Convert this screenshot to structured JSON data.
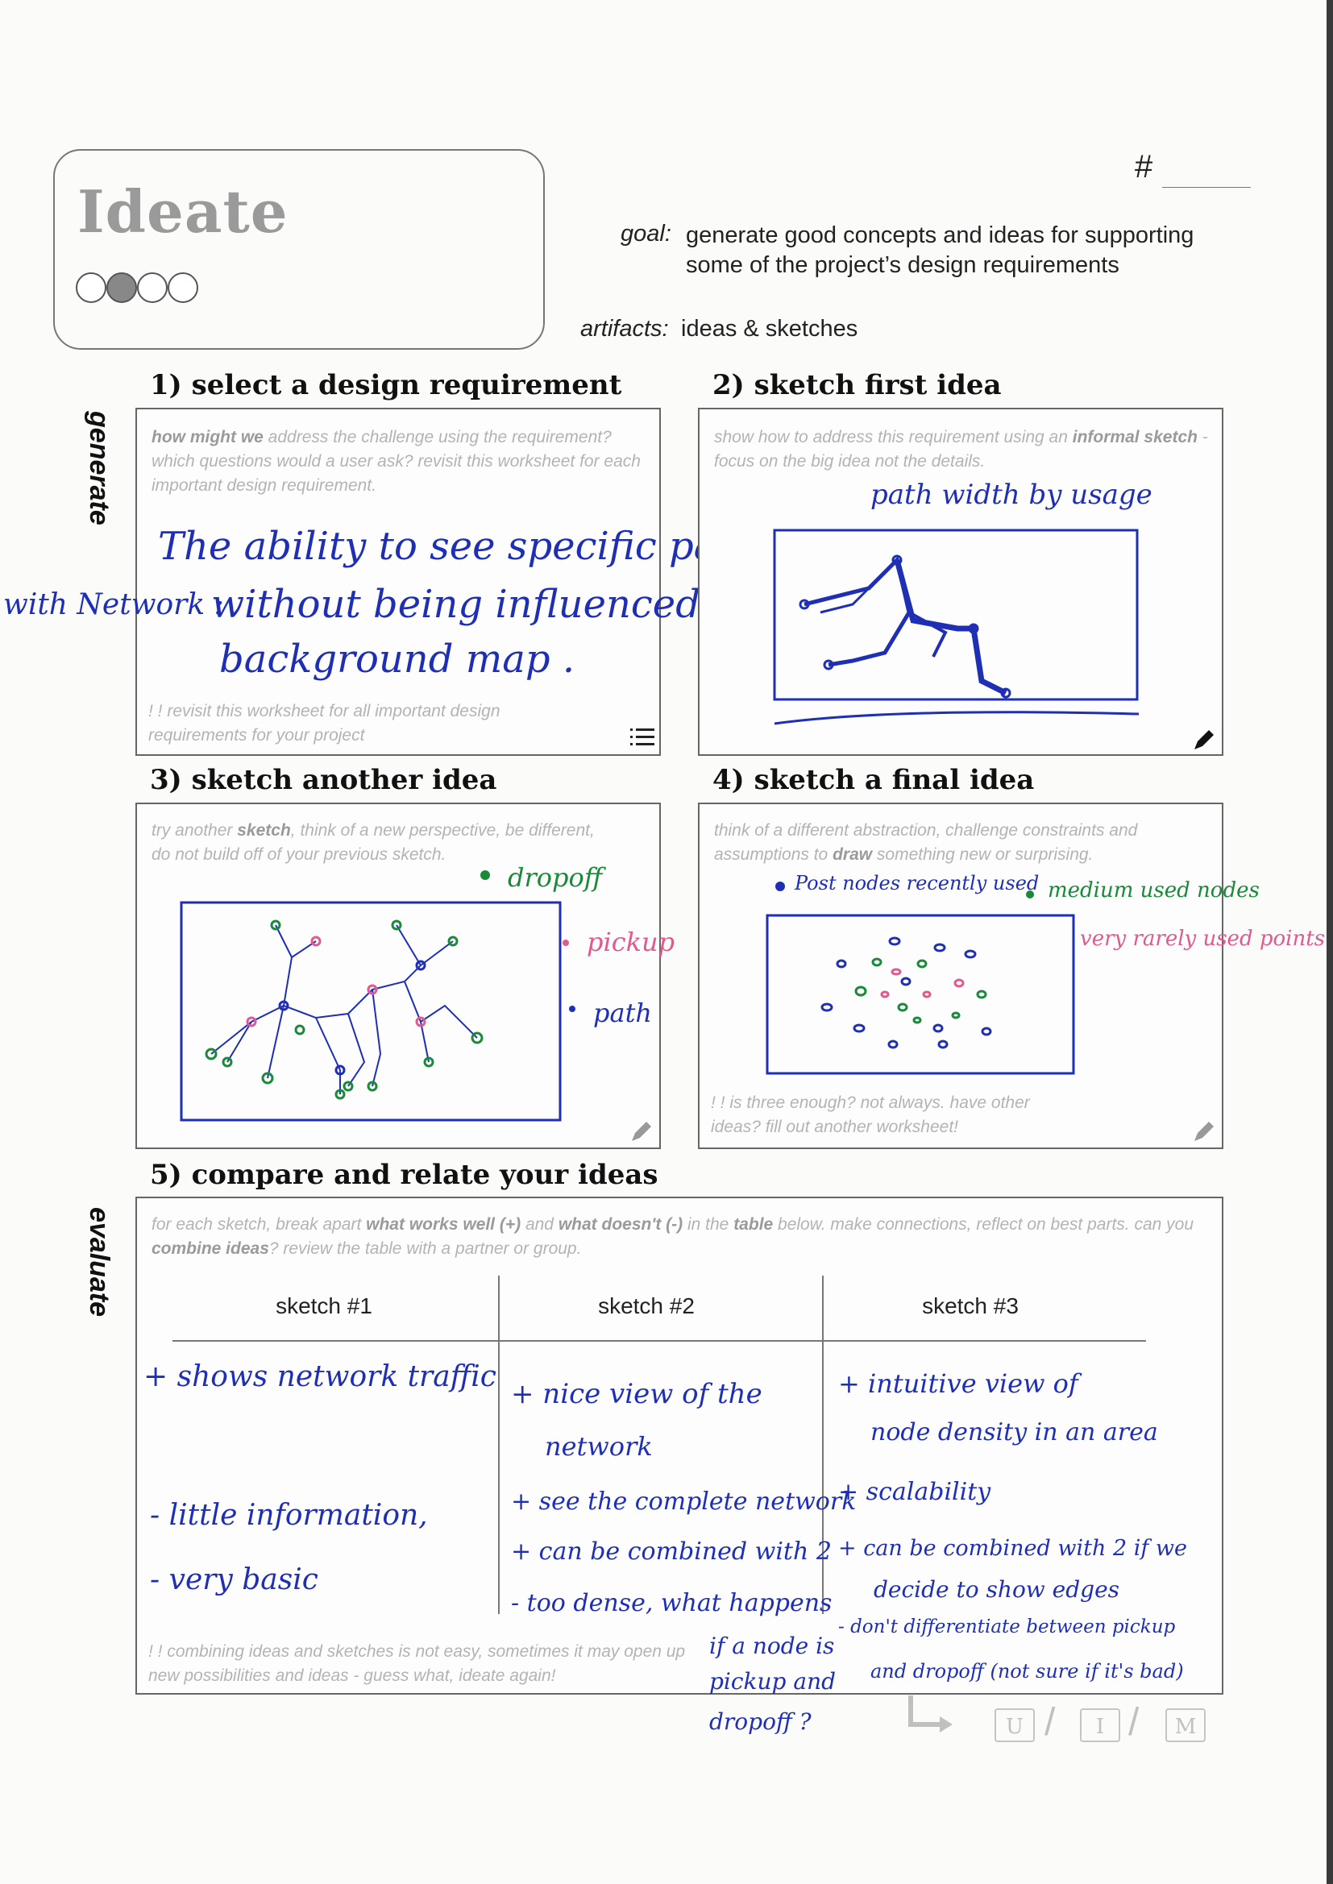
{
  "header": {
    "title": "Ideate",
    "progress_dots": {
      "total": 4,
      "active_index": 1
    },
    "number_label": "#",
    "goal_label": "goal:",
    "goal_text_line1": "generate good concepts and ideas for supporting",
    "goal_text_line2": "some of the project’s design requirements",
    "artifacts_label": "artifacts:",
    "artifacts_text": "ideas & sketches"
  },
  "side_labels": {
    "generate": "generate",
    "evaluate": "evaluate"
  },
  "sections": {
    "s1": {
      "heading": "1) select a design requirement",
      "instr_bold": "how might we",
      "instr_rest": " address the challenge using the requirement?  which questions would a user ask? revisit this worksheet for each important design requirement.",
      "note": "! !  revisit this worksheet for all important design requirements for your project",
      "handwriting": {
        "line1": "The ability to see specific pattern",
        "line2": "without being influenced by a",
        "line3": "background map .",
        "margin": "with Network :"
      }
    },
    "s2": {
      "heading": "2) sketch first idea",
      "instr_a": "show how to address this requirement using an ",
      "instr_b1": "informal sketch",
      "instr_c": " - focus on the big idea not the details.",
      "handwriting": {
        "caption": "path width by usage"
      }
    },
    "s3": {
      "heading": "3) sketch another idea",
      "instr_a": "try another ",
      "instr_b": "sketch",
      "instr_c": ", think of a new perspective, be different, do not build off of your previous sketch.",
      "legend": {
        "dropoff": "dropoff",
        "pickup": "pickup",
        "path": "path"
      }
    },
    "s4": {
      "heading": "4) sketch a final idea",
      "instr_a": "think of a different abstraction, challenge constraints and assumptions to ",
      "instr_b": "draw",
      "instr_c": " something new or surprising.",
      "note": "! !  is three enough? not always. have other ideas? fill out another worksheet!",
      "legend": {
        "recent": "Post nodes recently used",
        "medium": "medium used nodes",
        "rare": "very rarely used points"
      }
    },
    "s5": {
      "heading": "5) compare and relate your ideas",
      "instr_a": "for each sketch, break apart ",
      "instr_b": "what works well (+)",
      "instr_c": " and ",
      "instr_d": "what doesn't (-)",
      "instr_e": " in the ",
      "instr_f": "table",
      "instr_g": " below. make connections, reflect on best parts. can you ",
      "instr_h": "combine ideas",
      "instr_i": "? review the table with a partner or group.",
      "columns": [
        "sketch #1",
        "sketch #2",
        "sketch #3"
      ],
      "note": "! !  combining ideas and sketches is not easy, sometimes it may open up new possibilities and ideas - guess what, ideate again!",
      "col1": [
        "+ shows network traffic",
        "- little information,",
        "- very basic"
      ],
      "col2": [
        "+ nice view of the",
        "network",
        "+ see the complete network",
        "+ can be combined with 2",
        "- too dense, what happens",
        "if a node is",
        "pickup and",
        "dropoff ?"
      ],
      "col3": [
        "+ intuitive view of",
        "node density in an area",
        "+ scalability",
        "+ can be combined with 2 if we",
        "decide to show edges",
        "- don't differentiate between pickup",
        "and dropoff (not sure if it's bad)"
      ]
    }
  },
  "footer": {
    "umi": [
      "U",
      "I",
      "M"
    ]
  },
  "colors": {
    "ink_blue": "#1f2fb4",
    "ink_pink": "#e05a8f",
    "ink_green": "#1a8a3a"
  }
}
